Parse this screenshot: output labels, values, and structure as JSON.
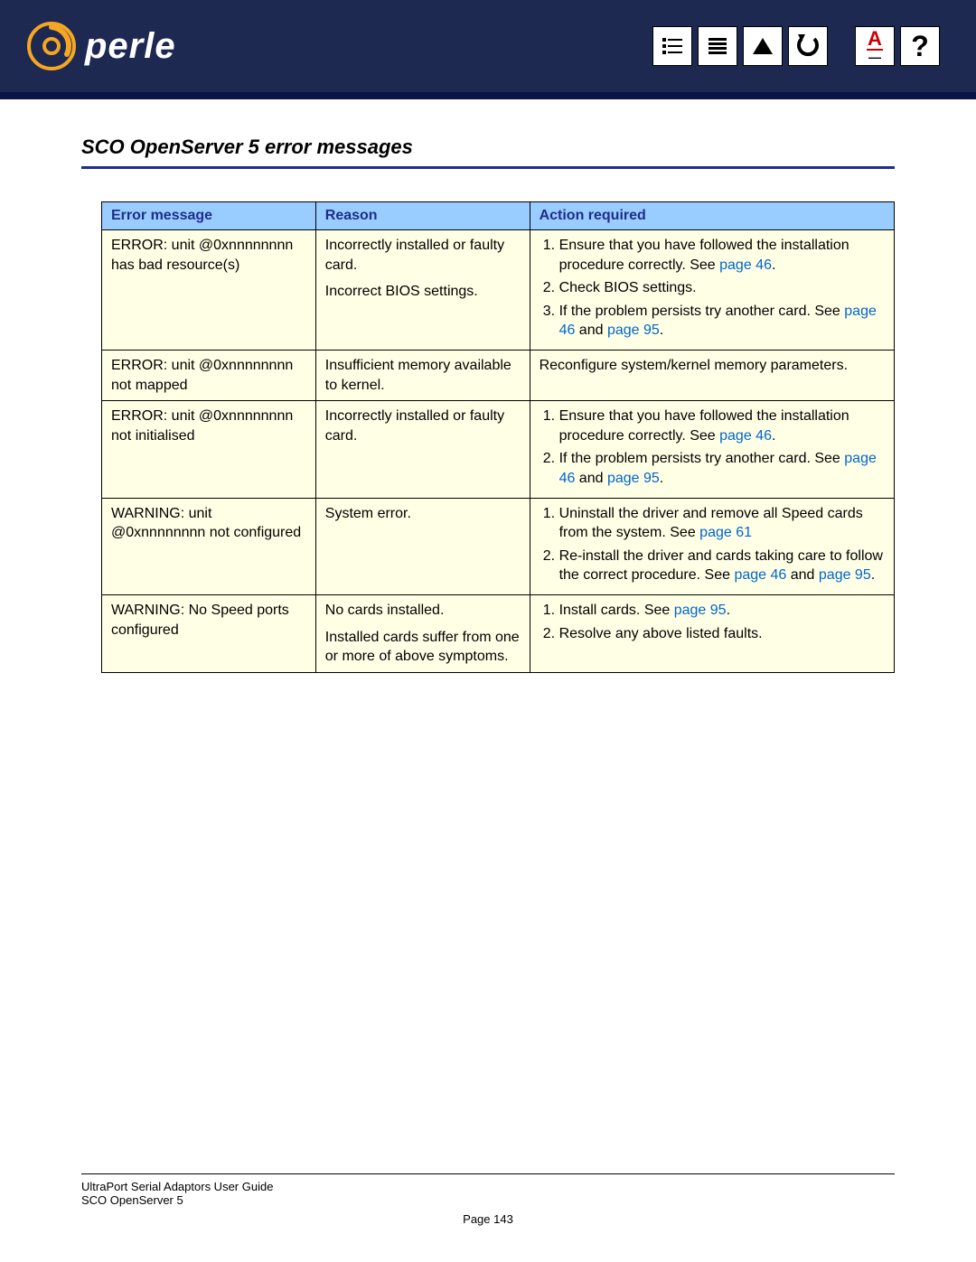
{
  "header": {
    "brand": "perle",
    "logo_color_outer": "#f5a623",
    "logo_color_inner": "#1e2952"
  },
  "toolbar": {
    "icons": [
      {
        "name": "contents-icon",
        "glyph": "≡"
      },
      {
        "name": "index-icon",
        "glyph": "▤"
      },
      {
        "name": "up-icon",
        "glyph": "▲"
      },
      {
        "name": "back-icon",
        "glyph": "↺"
      },
      {
        "name": "gap"
      },
      {
        "name": "spellcheck-icon",
        "glyph": "A"
      },
      {
        "name": "help-icon",
        "glyph": "?"
      }
    ]
  },
  "section": {
    "title": "SCO OpenServer 5 error messages"
  },
  "table": {
    "headers": {
      "c1": "Error message",
      "c2": "Reason",
      "c3": "Action required"
    },
    "rows": [
      {
        "msg": "ERROR: unit @0xnnnnnnnn has bad resource(s)",
        "reason_parts": [
          "Incorrectly installed or faulty card.",
          "Incorrect BIOS settings."
        ],
        "actions": [
          {
            "pre": "Ensure that you have followed the installation procedure correctly. See ",
            "links": [
              "page 46"
            ],
            "post": "."
          },
          {
            "pre": "Check BIOS settings.",
            "links": [],
            "post": ""
          },
          {
            "pre": "If the problem persists try another card. See ",
            "links": [
              "page 46",
              "page 95"
            ],
            "join": " and ",
            "post": "."
          }
        ]
      },
      {
        "msg": "ERROR: unit @0xnnnnnnnn not mapped",
        "reason_parts": [
          "Insufficient memory available to kernel."
        ],
        "action_plain": "Reconfigure system/kernel memory parameters."
      },
      {
        "msg": "ERROR: unit @0xnnnnnnnn not initialised",
        "reason_parts": [
          "Incorrectly installed or faulty card."
        ],
        "actions": [
          {
            "pre": "Ensure that you have followed the installation procedure correctly. See ",
            "links": [
              "page 46"
            ],
            "post": "."
          },
          {
            "pre": "If the problem persists try another card. See ",
            "links": [
              "page 46",
              "page 95"
            ],
            "join": " and ",
            "post": "."
          }
        ]
      },
      {
        "msg": "WARNING: unit @0xnnnnnnnn not configured",
        "reason_parts": [
          "System error."
        ],
        "actions": [
          {
            "pre": "Uninstall the driver and remove all Speed cards from the system. See ",
            "links": [
              "page 61"
            ],
            "post": ""
          },
          {
            "pre": "Re-install the driver and cards taking care to follow the correct procedure. See ",
            "links": [
              "page 46",
              "page 95"
            ],
            "join": " and ",
            "post": "."
          }
        ]
      },
      {
        "msg": "WARNING: No Speed ports configured",
        "reason_parts": [
          "No cards installed.",
          "Installed cards suffer from one or more of above symptoms."
        ],
        "actions": [
          {
            "pre": "Install cards. See ",
            "links": [
              "page 95"
            ],
            "post": "."
          },
          {
            "pre": "Resolve any above listed faults.",
            "links": [],
            "post": ""
          }
        ]
      }
    ]
  },
  "footer": {
    "line1": "UltraPort Serial Adaptors User Guide",
    "line2": "SCO OpenServer 5",
    "page": "Page 143"
  },
  "colors": {
    "header_bg": "#1e2952",
    "title_rule": "#1e2e8a",
    "th_bg": "#99ccff",
    "td_bg": "#ffffe6",
    "link": "#0066cc"
  }
}
